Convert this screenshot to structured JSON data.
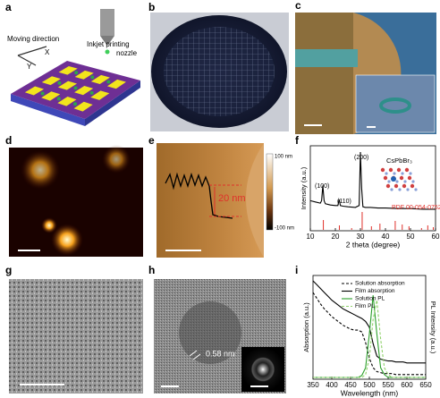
{
  "panels": {
    "a": {
      "label": "a",
      "moving_direction": "Moving direction",
      "x_axis": "X",
      "y_axis": "Y",
      "nozzle": [
        "Inkjet printing",
        "nozzle"
      ]
    },
    "b": {
      "label": "b"
    },
    "c": {
      "label": "c"
    },
    "d": {
      "label": "d"
    },
    "e": {
      "label": "e",
      "colorbar_max": "100 nm",
      "colorbar_min": "-100 nm",
      "height_annotation": "20 nm"
    },
    "f": {
      "label": "f",
      "chart_data": {
        "type": "line",
        "xlabel": "2 theta (degree)",
        "ylabel": "Intensity (a.u.)",
        "xlim": [
          10,
          60
        ],
        "xticks": [
          10,
          20,
          30,
          40,
          50,
          60
        ],
        "ylim": [
          0,
          100
        ],
        "x": [
          10,
          12,
          14,
          14.5,
          15,
          15.5,
          16,
          18,
          20,
          21,
          21.5,
          22,
          23,
          25,
          28,
          29.5,
          30,
          30.5,
          31,
          32,
          34,
          37,
          40,
          45,
          50,
          55,
          60
        ],
        "series": [
          {
            "color": "#000000",
            "values": [
              20,
              18,
              16,
              20,
              45,
              20,
              15,
              13,
              12,
              12,
              22,
              12,
              11,
              10,
              9,
              12,
              100,
              40,
              10,
              9,
              9,
              8,
              8,
              7,
              7,
              6,
              6
            ]
          }
        ],
        "peak_labels": [
          "(100)",
          "(110)",
          "(200)"
        ],
        "compound": "CsPbBr₃",
        "reference": {
          "name": "PDF 00-054-0752",
          "color": "#e0302a",
          "x": [
            15.2,
            21.6,
            26.5,
            30.7,
            34.4,
            37.8,
            43.9,
            46.7,
            49.4,
            54.4,
            56.9,
            59.1
          ],
          "values": [
            55,
            25,
            10,
            100,
            20,
            35,
            50,
            30,
            20,
            10,
            25,
            15
          ]
        }
      }
    },
    "g": {
      "label": "g"
    },
    "h": {
      "label": "h",
      "lattice_spacing": "0.58 nm"
    },
    "i": {
      "label": "i",
      "chart_data": {
        "type": "line",
        "xlabel": "Wavelength (nm)",
        "ylabel": "Absorption (a.u.)",
        "y2label": "PL Intensity (a.u.)",
        "xlim": [
          350,
          650
        ],
        "xticks": [
          350,
          400,
          450,
          500,
          550,
          600,
          650
        ],
        "ylim": [
          0,
          1
        ],
        "x": [
          350,
          360,
          370,
          380,
          390,
          400,
          410,
          420,
          430,
          440,
          450,
          460,
          470,
          480,
          490,
          500,
          510,
          520,
          530,
          540,
          550,
          560,
          570,
          580,
          590,
          600,
          610,
          620,
          630,
          640,
          650
        ],
        "series": [
          {
            "name": "Solution absorption",
            "color": "#000000",
            "dash": true,
            "values": [
              0.88,
              0.82,
              0.76,
              0.71,
              0.67,
              0.63,
              0.6,
              0.57,
              0.54,
              0.52,
              0.5,
              0.49,
              0.49,
              0.47,
              0.36,
              0.2,
              0.1,
              0.06,
              0.05,
              0.04,
              0.04,
              0.04,
              0.03,
              0.03,
              0.03,
              0.03,
              0.03,
              0.03,
              0.03,
              0.03,
              0.03
            ]
          },
          {
            "name": "Film absorption",
            "color": "#000000",
            "dash": false,
            "values": [
              1.0,
              0.96,
              0.92,
              0.88,
              0.84,
              0.8,
              0.77,
              0.74,
              0.71,
              0.69,
              0.67,
              0.65,
              0.63,
              0.61,
              0.58,
              0.52,
              0.35,
              0.22,
              0.19,
              0.18,
              0.17,
              0.17,
              0.16,
              0.16,
              0.16,
              0.15,
              0.15,
              0.15,
              0.15,
              0.15,
              0.15
            ]
          },
          {
            "name": "Solution PL",
            "color": "#2ca02c",
            "dash": false,
            "values": [
              0,
              0,
              0,
              0,
              0,
              0,
              0,
              0,
              0,
              0,
              0,
              0,
              0,
              0.02,
              0.1,
              0.45,
              0.85,
              0.45,
              0.1,
              0.03,
              0,
              0,
              0,
              0,
              0,
              0,
              0,
              0,
              0,
              0,
              0
            ]
          },
          {
            "name": "Film PL",
            "color": "#8fd16a",
            "dash": true,
            "values": [
              0,
              0,
              0,
              0,
              0,
              0,
              0,
              0,
              0,
              0,
              0,
              0,
              0,
              0,
              0.03,
              0.2,
              0.6,
              0.8,
              0.4,
              0.1,
              0.03,
              0,
              0,
              0,
              0,
              0,
              0,
              0,
              0,
              0,
              0
            ]
          }
        ]
      }
    }
  }
}
